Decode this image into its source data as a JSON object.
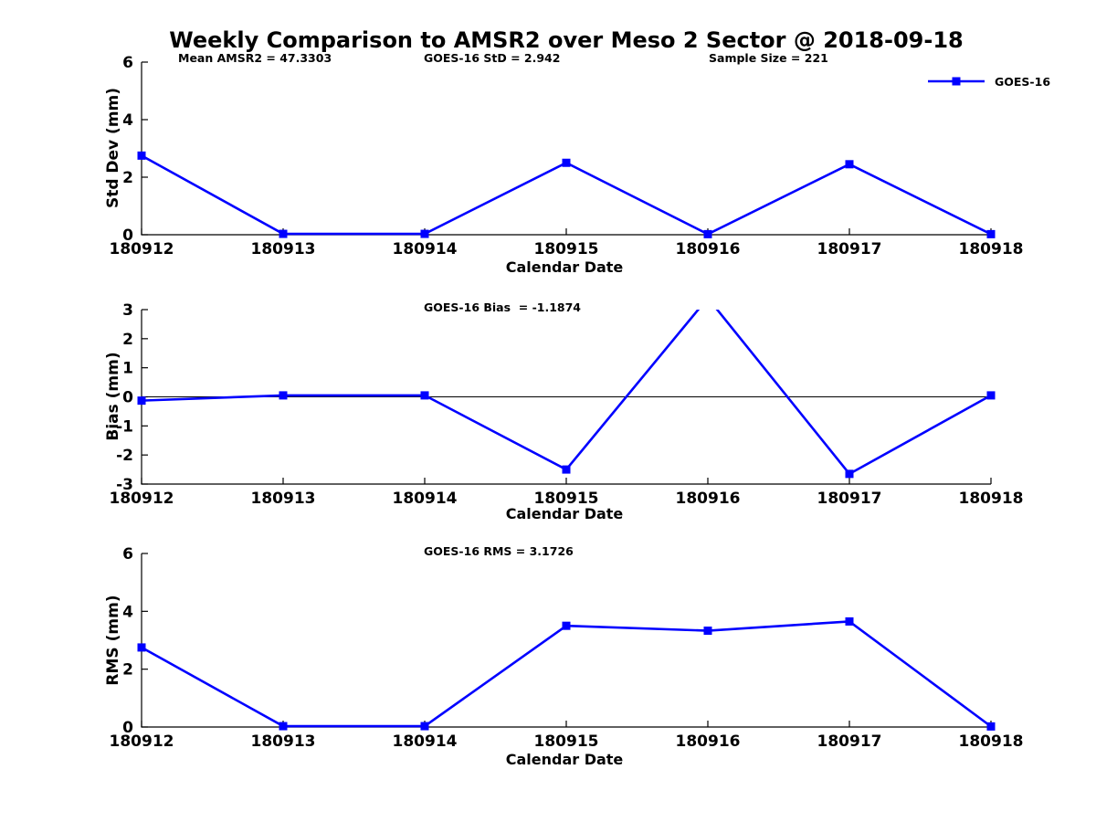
{
  "figure_title": "Weekly Comparison to AMSR2 over Meso 2 Sector @ 2018-09-18",
  "header_annotations": {
    "mean_amsr2": "Mean AMSR2 = 47.3303",
    "goes16_std": "GOES-16 StD = 2.942",
    "sample_size": "Sample Size = 221"
  },
  "legend": {
    "label": "GOES-16",
    "color": "#0000ff",
    "marker": "filled-square",
    "position": "top-right-outside"
  },
  "colors": {
    "line": "#0000ff",
    "axis": "#000000",
    "background": "#ffffff"
  },
  "chart_data": [
    {
      "type": "line",
      "name": "std-dev-vs-date",
      "annotation": "",
      "categories": [
        "180912",
        "180913",
        "180914",
        "180915",
        "180916",
        "180917",
        "180918"
      ],
      "series": [
        {
          "name": "GOES-16",
          "values": [
            2.75,
            0.03,
            0.03,
            2.5,
            0.02,
            2.45,
            0.02
          ]
        }
      ],
      "xlabel": "Calendar Date",
      "ylabel": "Std Dev (mm)",
      "ylim": [
        0,
        6
      ],
      "yticks": [
        0,
        2,
        4,
        6
      ],
      "grid": false,
      "zero_line": false
    },
    {
      "type": "line",
      "name": "bias-vs-date",
      "annotation": "GOES-16 Bias  = -1.1874",
      "categories": [
        "180912",
        "180913",
        "180914",
        "180915",
        "180916",
        "180917",
        "180918"
      ],
      "series": [
        {
          "name": "GOES-16",
          "values": [
            -0.13,
            0.05,
            0.05,
            -2.5,
            3.4,
            -2.65,
            0.05
          ]
        }
      ],
      "note": "value at 180916 exceeds axis max and is clipped at y=3",
      "xlabel": "Calendar Date",
      "ylabel": "Bias (mm)",
      "ylim": [
        -3,
        3
      ],
      "yticks": [
        -3,
        -2,
        -1,
        0,
        1,
        2,
        3
      ],
      "grid": false,
      "zero_line": true
    },
    {
      "type": "line",
      "name": "rms-vs-date",
      "annotation": "GOES-16 RMS = 3.1726",
      "categories": [
        "180912",
        "180913",
        "180914",
        "180915",
        "180916",
        "180917",
        "180918"
      ],
      "series": [
        {
          "name": "GOES-16",
          "values": [
            2.75,
            0.03,
            0.03,
            3.5,
            3.33,
            3.65,
            0.02
          ]
        }
      ],
      "xlabel": "Calendar Date",
      "ylabel": "RMS (mm)",
      "ylim": [
        0,
        6
      ],
      "yticks": [
        0,
        2,
        4,
        6
      ],
      "grid": false,
      "zero_line": false
    }
  ]
}
